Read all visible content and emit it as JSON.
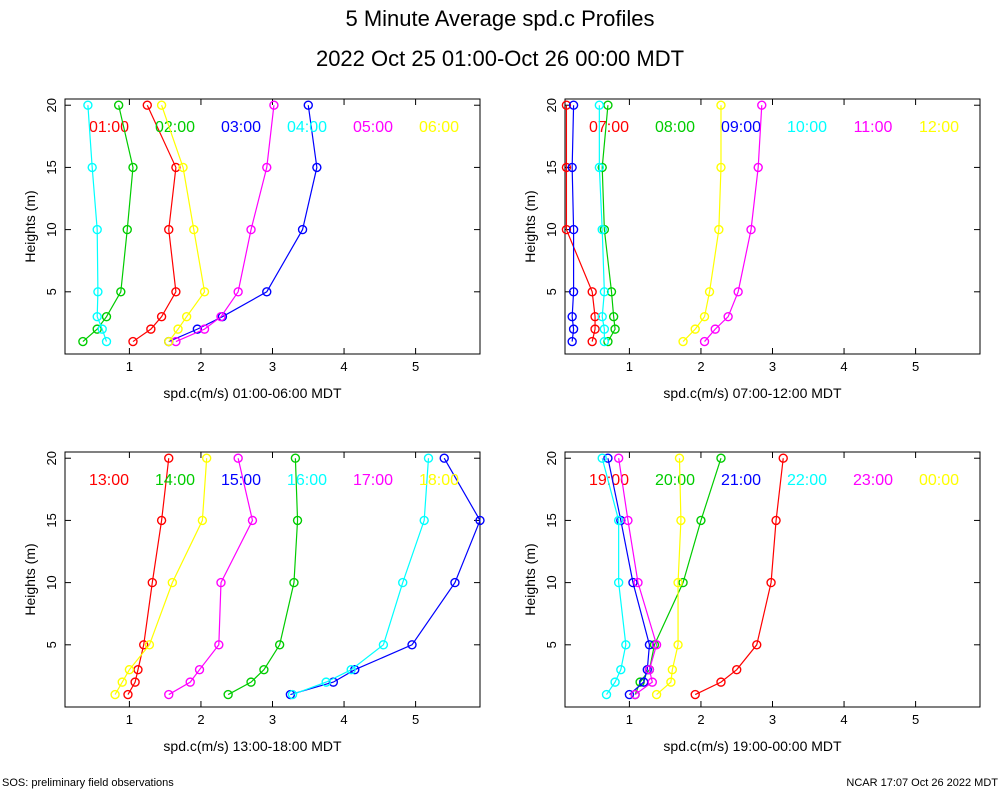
{
  "header": {
    "title": "5 Minute Average spd.c Profiles",
    "subtitle": "2022 Oct 25 01:00-Oct 26 00:00 MDT"
  },
  "footer": {
    "left": "SOS: preliminary field observations",
    "right": "NCAR 17:07 Oct 26 2022 MDT"
  },
  "chart_data": [
    {
      "type": "line",
      "xlabel": "spd.c(m/s) 01:00-06:00 MDT",
      "ylabel": "Heights (m)",
      "xlim": [
        0.1,
        5.9
      ],
      "ylim": [
        0,
        20.5
      ],
      "xticks": [
        1,
        2,
        3,
        4,
        5
      ],
      "yticks": [
        5,
        10,
        15,
        20
      ],
      "series": [
        {
          "name": "01:00",
          "color": "#ff0000",
          "points": [
            [
              1.05,
              1
            ],
            [
              1.3,
              2
            ],
            [
              1.45,
              3
            ],
            [
              1.65,
              5
            ],
            [
              1.55,
              10
            ],
            [
              1.65,
              15
            ],
            [
              1.25,
              20
            ]
          ]
        },
        {
          "name": "02:00",
          "color": "#00cc00",
          "points": [
            [
              0.35,
              1
            ],
            [
              0.55,
              2
            ],
            [
              0.68,
              3
            ],
            [
              0.88,
              5
            ],
            [
              0.97,
              10
            ],
            [
              1.05,
              15
            ],
            [
              0.85,
              20
            ]
          ]
        },
        {
          "name": "03:00",
          "color": "#0000ff",
          "points": [
            [
              1.55,
              1
            ],
            [
              1.95,
              2
            ],
            [
              2.3,
              3
            ],
            [
              2.92,
              5
            ],
            [
              3.42,
              10
            ],
            [
              3.62,
              15
            ],
            [
              3.5,
              20
            ]
          ]
        },
        {
          "name": "04:00",
          "color": "#00ffff",
          "points": [
            [
              0.68,
              1
            ],
            [
              0.62,
              2
            ],
            [
              0.55,
              3
            ],
            [
              0.56,
              5
            ],
            [
              0.55,
              10
            ],
            [
              0.48,
              15
            ],
            [
              0.42,
              20
            ]
          ]
        },
        {
          "name": "05:00",
          "color": "#ff00ff",
          "points": [
            [
              1.65,
              1
            ],
            [
              2.05,
              2
            ],
            [
              2.28,
              3
            ],
            [
              2.52,
              5
            ],
            [
              2.7,
              10
            ],
            [
              2.92,
              15
            ],
            [
              3.02,
              20
            ]
          ]
        },
        {
          "name": "06:00",
          "color": "#ffff00",
          "points": [
            [
              1.55,
              1
            ],
            [
              1.68,
              2
            ],
            [
              1.8,
              3
            ],
            [
              2.05,
              5
            ],
            [
              1.9,
              10
            ],
            [
              1.75,
              15
            ],
            [
              1.45,
              20
            ]
          ]
        }
      ]
    },
    {
      "type": "line",
      "xlabel": "spd.c(m/s) 07:00-12:00 MDT",
      "ylabel": "Heights (m)",
      "xlim": [
        0.1,
        5.9
      ],
      "ylim": [
        0,
        20.5
      ],
      "xticks": [
        1,
        2,
        3,
        4,
        5
      ],
      "yticks": [
        5,
        10,
        15,
        20
      ],
      "series": [
        {
          "name": "07:00",
          "color": "#ff0000",
          "points": [
            [
              0.48,
              1
            ],
            [
              0.52,
              2
            ],
            [
              0.52,
              3
            ],
            [
              0.48,
              5
            ],
            [
              0.12,
              10
            ],
            [
              0.12,
              15
            ],
            [
              0.12,
              20
            ]
          ]
        },
        {
          "name": "08:00",
          "color": "#00cc00",
          "points": [
            [
              0.7,
              1
            ],
            [
              0.8,
              2
            ],
            [
              0.78,
              3
            ],
            [
              0.75,
              5
            ],
            [
              0.65,
              10
            ],
            [
              0.62,
              15
            ],
            [
              0.7,
              20
            ]
          ]
        },
        {
          "name": "09:00",
          "color": "#0000ff",
          "points": [
            [
              0.2,
              1
            ],
            [
              0.22,
              2
            ],
            [
              0.2,
              3
            ],
            [
              0.22,
              5
            ],
            [
              0.22,
              10
            ],
            [
              0.2,
              15
            ],
            [
              0.22,
              20
            ]
          ]
        },
        {
          "name": "10:00",
          "color": "#00ffff",
          "points": [
            [
              0.65,
              1
            ],
            [
              0.65,
              2
            ],
            [
              0.62,
              3
            ],
            [
              0.65,
              5
            ],
            [
              0.62,
              10
            ],
            [
              0.58,
              15
            ],
            [
              0.58,
              20
            ]
          ]
        },
        {
          "name": "11:00",
          "color": "#ff00ff",
          "points": [
            [
              2.05,
              1
            ],
            [
              2.2,
              2
            ],
            [
              2.38,
              3
            ],
            [
              2.52,
              5
            ],
            [
              2.7,
              10
            ],
            [
              2.8,
              15
            ],
            [
              2.85,
              20
            ]
          ]
        },
        {
          "name": "12:00",
          "color": "#ffff00",
          "points": [
            [
              1.75,
              1
            ],
            [
              1.92,
              2
            ],
            [
              2.05,
              3
            ],
            [
              2.12,
              5
            ],
            [
              2.25,
              10
            ],
            [
              2.28,
              15
            ],
            [
              2.28,
              20
            ]
          ]
        }
      ]
    },
    {
      "type": "line",
      "xlabel": "spd.c(m/s) 13:00-18:00 MDT",
      "ylabel": "Heights (m)",
      "xlim": [
        0.1,
        5.9
      ],
      "ylim": [
        0,
        20.5
      ],
      "xticks": [
        1,
        2,
        3,
        4,
        5
      ],
      "yticks": [
        5,
        10,
        15,
        20
      ],
      "series": [
        {
          "name": "13:00",
          "color": "#ff0000",
          "points": [
            [
              0.98,
              1
            ],
            [
              1.08,
              2
            ],
            [
              1.12,
              3
            ],
            [
              1.2,
              5
            ],
            [
              1.32,
              10
            ],
            [
              1.45,
              15
            ],
            [
              1.55,
              20
            ]
          ]
        },
        {
          "name": "14:00",
          "color": "#00cc00",
          "points": [
            [
              2.38,
              1
            ],
            [
              2.7,
              2
            ],
            [
              2.88,
              3
            ],
            [
              3.1,
              5
            ],
            [
              3.3,
              10
            ],
            [
              3.35,
              15
            ],
            [
              3.32,
              20
            ]
          ]
        },
        {
          "name": "15:00",
          "color": "#0000ff",
          "points": [
            [
              3.25,
              1
            ],
            [
              3.85,
              2
            ],
            [
              4.15,
              3
            ],
            [
              4.95,
              5
            ],
            [
              5.55,
              10
            ],
            [
              5.9,
              15
            ],
            [
              5.4,
              20
            ]
          ]
        },
        {
          "name": "16:00",
          "color": "#00ffff",
          "points": [
            [
              3.28,
              1
            ],
            [
              3.75,
              2
            ],
            [
              4.1,
              3
            ],
            [
              4.55,
              5
            ],
            [
              4.82,
              10
            ],
            [
              5.12,
              15
            ],
            [
              5.18,
              20
            ]
          ]
        },
        {
          "name": "17:00",
          "color": "#ff00ff",
          "points": [
            [
              1.55,
              1
            ],
            [
              1.85,
              2
            ],
            [
              1.98,
              3
            ],
            [
              2.25,
              5
            ],
            [
              2.28,
              10
            ],
            [
              2.72,
              15
            ],
            [
              2.52,
              20
            ]
          ]
        },
        {
          "name": "18:00",
          "color": "#ffff00",
          "points": [
            [
              0.8,
              1
            ],
            [
              0.9,
              2
            ],
            [
              1.0,
              3
            ],
            [
              1.28,
              5
            ],
            [
              1.6,
              10
            ],
            [
              2.02,
              15
            ],
            [
              2.08,
              20
            ]
          ]
        }
      ]
    },
    {
      "type": "line",
      "xlabel": "spd.c(m/s) 19:00-00:00 MDT",
      "ylabel": "Heights (m)",
      "xlim": [
        0.1,
        5.9
      ],
      "ylim": [
        0,
        20.5
      ],
      "xticks": [
        1,
        2,
        3,
        4,
        5
      ],
      "yticks": [
        5,
        10,
        15,
        20
      ],
      "series": [
        {
          "name": "19:00",
          "color": "#ff0000",
          "points": [
            [
              1.92,
              1
            ],
            [
              2.28,
              2
            ],
            [
              2.5,
              3
            ],
            [
              2.78,
              5
            ],
            [
              2.98,
              10
            ],
            [
              3.05,
              15
            ],
            [
              3.15,
              20
            ]
          ]
        },
        {
          "name": "20:00",
          "color": "#00cc00",
          "points": [
            [
              1.08,
              1
            ],
            [
              1.15,
              2
            ],
            [
              1.28,
              3
            ],
            [
              1.35,
              5
            ],
            [
              1.75,
              10
            ],
            [
              2.0,
              15
            ],
            [
              2.28,
              20
            ]
          ]
        },
        {
          "name": "21:00",
          "color": "#0000ff",
          "points": [
            [
              1.0,
              1
            ],
            [
              1.2,
              2
            ],
            [
              1.25,
              3
            ],
            [
              1.28,
              5
            ],
            [
              1.05,
              10
            ],
            [
              0.88,
              15
            ],
            [
              0.7,
              20
            ]
          ]
        },
        {
          "name": "22:00",
          "color": "#00ffff",
          "points": [
            [
              0.68,
              1
            ],
            [
              0.8,
              2
            ],
            [
              0.88,
              3
            ],
            [
              0.95,
              5
            ],
            [
              0.85,
              10
            ],
            [
              0.85,
              15
            ],
            [
              0.62,
              20
            ]
          ]
        },
        {
          "name": "23:00",
          "color": "#ff00ff",
          "points": [
            [
              1.08,
              1
            ],
            [
              1.32,
              2
            ],
            [
              1.28,
              3
            ],
            [
              1.38,
              5
            ],
            [
              1.12,
              10
            ],
            [
              0.98,
              15
            ],
            [
              0.85,
              20
            ]
          ]
        },
        {
          "name": "00:00",
          "color": "#ffff00",
          "points": [
            [
              1.38,
              1
            ],
            [
              1.58,
              2
            ],
            [
              1.6,
              3
            ],
            [
              1.68,
              5
            ],
            [
              1.68,
              10
            ],
            [
              1.72,
              15
            ],
            [
              1.7,
              20
            ]
          ]
        }
      ]
    }
  ]
}
